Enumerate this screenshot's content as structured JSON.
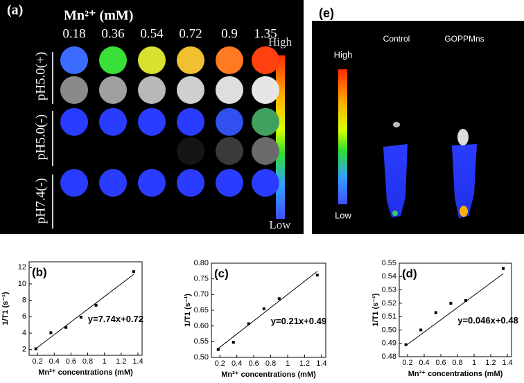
{
  "panel_a": {
    "label": "(a)",
    "header": "Mn²⁺ (mM)",
    "concentrations": [
      0.18,
      0.36,
      0.54,
      0.72,
      0.9,
      1.35
    ],
    "row_labels": [
      "pH5.0(+)",
      "pH5.0(-)",
      "pH7.4(-)"
    ],
    "colorbar_high": "High",
    "colorbar_low": "Low"
  },
  "panel_e": {
    "label": "(e)",
    "columns": [
      "Control",
      "GOPPMns"
    ],
    "colorbar_high": "High",
    "colorbar_low": "Low"
  },
  "chart_data": [
    {
      "type": "scatter",
      "panel_label": "(b)",
      "xlabel": "Mn²⁺ concentrations (mM)",
      "ylabel": "1/T1 (s⁻¹)",
      "annotation": "y=7.74x+0.72",
      "x": [
        0.18,
        0.36,
        0.54,
        0.72,
        0.9,
        1.35
      ],
      "values": [
        2.1,
        4.05,
        4.7,
        5.95,
        7.4,
        11.5
      ],
      "fit_line": {
        "x": [
          0.18,
          1.35
        ],
        "y": [
          2.11,
          11.17
        ]
      },
      "xlim": [
        0.1,
        1.45
      ],
      "xticks": [
        0.2,
        0.4,
        0.6,
        0.8,
        1.0,
        1.2,
        1.4
      ],
      "ylim": [
        1.3,
        12.7
      ],
      "yticks": [
        2,
        4,
        6,
        8,
        10,
        12
      ],
      "color": "#000000"
    },
    {
      "type": "scatter",
      "panel_label": "(c)",
      "xlabel": "Mn²⁺ concentrations (mM)",
      "ylabel": "1/T1 (s⁻¹)",
      "annotation": "y=0.21x+0.49",
      "x": [
        0.18,
        0.36,
        0.54,
        0.72,
        0.9,
        1.35
      ],
      "values": [
        0.525,
        0.548,
        0.607,
        0.655,
        0.687,
        0.762
      ],
      "fit_line": {
        "x": [
          0.18,
          1.35
        ],
        "y": [
          0.528,
          0.774
        ]
      },
      "xlim": [
        0.1,
        1.45
      ],
      "xticks": [
        0.2,
        0.4,
        0.6,
        0.8,
        1.0,
        1.2,
        1.4
      ],
      "ylim": [
        0.5,
        0.8
      ],
      "yticks": [
        {
          "value": 0.5,
          "label": "0.50"
        },
        0.55,
        {
          "value": 0.6,
          "label": "0.60"
        },
        0.65,
        {
          "value": 0.7,
          "label": "0.70"
        },
        0.75,
        {
          "value": 0.8,
          "label": "0.80"
        }
      ],
      "color": "#000000"
    },
    {
      "type": "scatter",
      "panel_label": "(d)",
      "xlabel": "Mn²⁺ concentrations (mM)",
      "ylabel": "1/T1 (s⁻¹)",
      "annotation": "y=0.046x+0.48",
      "x": [
        0.18,
        0.36,
        0.54,
        0.72,
        0.9,
        1.35
      ],
      "values": [
        0.489,
        0.5,
        0.513,
        0.52,
        0.522,
        0.546
      ],
      "fit_line": {
        "x": [
          0.18,
          1.35
        ],
        "y": [
          0.4883,
          0.5421
        ]
      },
      "xlim": [
        0.1,
        1.45
      ],
      "xticks": [
        0.2,
        0.4,
        0.6,
        0.8,
        1.0,
        1.2,
        1.4
      ],
      "ylim": [
        0.48,
        0.55
      ],
      "yticks": [
        0.48,
        0.49,
        {
          "value": 0.5,
          "label": "0.50"
        },
        0.51,
        0.52,
        0.53,
        0.54,
        0.55
      ],
      "color": "#000000"
    }
  ]
}
